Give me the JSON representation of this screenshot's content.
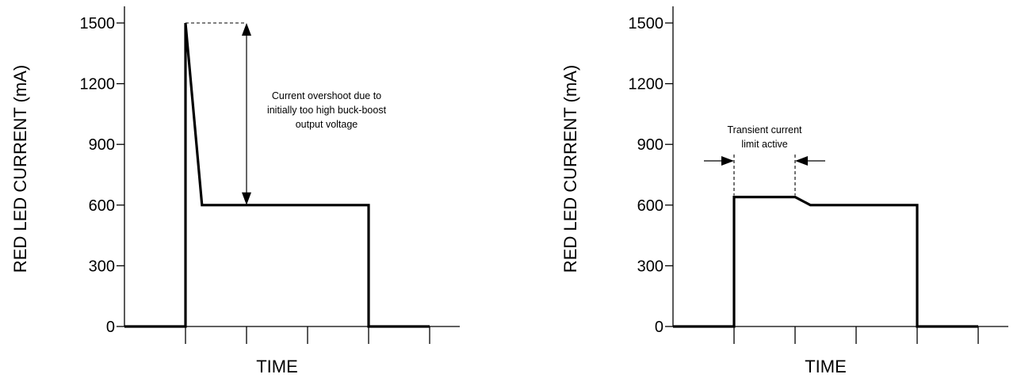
{
  "chart_data": [
    {
      "type": "line",
      "xlabel": "TIME",
      "ylabel": "RED LED CURRENT (mA)",
      "ylim": [
        0,
        1500
      ],
      "yticks": [
        "0",
        "300",
        "600",
        "900",
        "1200",
        "1500"
      ],
      "x_major_ticks": 5,
      "grid": false,
      "series": [
        {
          "x": [
            0,
            1.0,
            1.0,
            1.27,
            4.0,
            4.0,
            5.0
          ],
          "y": [
            0,
            0,
            1500,
            600,
            600,
            0,
            0
          ]
        }
      ],
      "annotation": {
        "text": [
          "Current overshoot due to",
          "initially too high buck-boost",
          "output voltage"
        ],
        "from_value": 1500,
        "to_value": 600
      }
    },
    {
      "type": "line",
      "xlabel": "TIME",
      "ylabel": "RED LED CURRENT (mA)",
      "ylim": [
        0,
        1500
      ],
      "yticks": [
        "0",
        "300",
        "600",
        "900",
        "1200",
        "1500"
      ],
      "x_major_ticks": 5,
      "grid": false,
      "series": [
        {
          "x": [
            0,
            1.0,
            1.0,
            2.0,
            2.25,
            3.0,
            4.0,
            4.0,
            5.0
          ],
          "y": [
            0,
            0,
            640,
            640,
            600,
            600,
            600,
            0,
            0
          ]
        }
      ],
      "annotation": {
        "text": [
          "Transient current",
          "limit active"
        ],
        "x_start": 1.0,
        "x_end": 2.0
      }
    }
  ]
}
